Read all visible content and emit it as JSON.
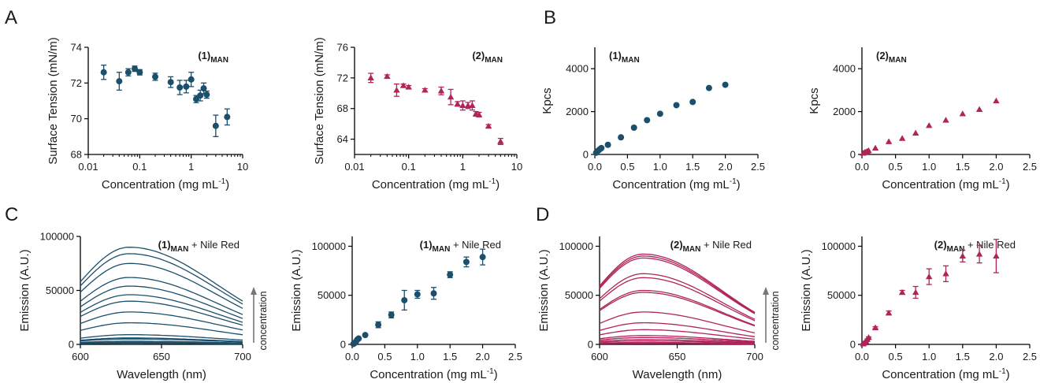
{
  "colors": {
    "blue": "#1b4f6b",
    "red": "#b0245a",
    "axis": "#000000",
    "arrow": "#777777"
  },
  "panel_letters": {
    "a": "A",
    "b": "B",
    "c": "C",
    "d": "D"
  },
  "chart_data": [
    {
      "type": "scatter",
      "panel": "A",
      "annotation": {
        "main": "(1)",
        "sub": "MAN"
      },
      "xscale": "log",
      "xlim": [
        0.01,
        10
      ],
      "ylim": [
        68,
        74
      ],
      "xticks": [
        0.01,
        0.1,
        1,
        10
      ],
      "xtick_labels": [
        "0.01",
        "0.1",
        "1",
        "10"
      ],
      "yticks": [
        68,
        70,
        72,
        74
      ],
      "xlabel": "Concentration (mg mL",
      "xlabel_sup": "-1",
      "xlabel_end": ")",
      "ylabel": "Surface Tension (mN/m)",
      "marker": "circle",
      "color": "#1b4f6b",
      "x": [
        0.02,
        0.04,
        0.06,
        0.08,
        0.1,
        0.2,
        0.4,
        0.6,
        0.8,
        1.0,
        1.25,
        1.5,
        1.75,
        2.0,
        3.0,
        5.0
      ],
      "y": [
        72.6,
        72.1,
        72.6,
        72.8,
        72.6,
        72.35,
        72.05,
        71.75,
        71.8,
        72.2,
        71.1,
        71.3,
        71.7,
        71.35,
        69.6,
        70.1
      ],
      "err": [
        0.4,
        0.5,
        0.2,
        0.15,
        0.15,
        0.2,
        0.3,
        0.4,
        0.35,
        0.4,
        0.2,
        0.3,
        0.3,
        0.2,
        0.6,
        0.45
      ]
    },
    {
      "type": "scatter",
      "panel": "A",
      "annotation": {
        "main": "(2)",
        "sub": "MAN"
      },
      "xscale": "log",
      "xlim": [
        0.01,
        10
      ],
      "ylim": [
        62,
        76
      ],
      "xticks": [
        0.01,
        0.1,
        1,
        10
      ],
      "xtick_labels": [
        "0.01",
        "0.1",
        "1",
        "10"
      ],
      "yticks": [
        64,
        68,
        72,
        76
      ],
      "xlabel": "Concentration (mg mL",
      "xlabel_sup": "-1",
      "xlabel_end": ")",
      "ylabel": "Surface Tension (mN/m)",
      "marker": "triangle",
      "color": "#b0245a",
      "x": [
        0.02,
        0.04,
        0.06,
        0.08,
        0.1,
        0.2,
        0.4,
        0.6,
        0.8,
        1.0,
        1.25,
        1.5,
        1.75,
        2.0,
        3.0,
        5.0
      ],
      "y": [
        72.0,
        72.2,
        70.4,
        71.0,
        70.8,
        70.4,
        70.3,
        69.5,
        68.6,
        68.4,
        68.4,
        68.4,
        67.3,
        67.2,
        65.7,
        63.7
      ],
      "err": [
        0.6,
        0.2,
        0.8,
        0.2,
        0.2,
        0.2,
        0.5,
        1.0,
        0.3,
        0.6,
        0.4,
        0.6,
        0.3,
        0.3,
        0.2,
        0.4
      ]
    },
    {
      "type": "scatter",
      "panel": "B",
      "annotation": {
        "main": "(1)",
        "sub": "MAN"
      },
      "xlim": [
        0,
        2.5
      ],
      "ylim": [
        0,
        5000
      ],
      "xticks": [
        0,
        0.5,
        1,
        1.5,
        2,
        2.5
      ],
      "xtick_labels": [
        "0.0",
        "0.5",
        "1.0",
        "1.5",
        "2.0",
        "2.5"
      ],
      "yticks": [
        0,
        2000,
        4000
      ],
      "xlabel": "Concentration (mg mL",
      "xlabel_sup": "-1",
      "xlabel_end": ")",
      "ylabel": "Kpcs",
      "marker": "circle",
      "color": "#1b4f6b",
      "x": [
        0.02,
        0.04,
        0.06,
        0.08,
        0.1,
        0.2,
        0.4,
        0.6,
        0.8,
        1.0,
        1.25,
        1.5,
        1.75,
        2.0
      ],
      "y": [
        80,
        150,
        200,
        250,
        300,
        450,
        800,
        1250,
        1600,
        1900,
        2300,
        2450,
        3100,
        3250
      ]
    },
    {
      "type": "scatter",
      "panel": "B",
      "annotation": {
        "main": "(2)",
        "sub": "MAN"
      },
      "xlim": [
        0,
        2.5
      ],
      "ylim": [
        0,
        5000
      ],
      "xticks": [
        0,
        0.5,
        1,
        1.5,
        2,
        2.5
      ],
      "xtick_labels": [
        "0.0",
        "0.5",
        "1.0",
        "1.5",
        "2.0",
        "2.5"
      ],
      "yticks": [
        0,
        2000,
        4000
      ],
      "xlabel": "Concentration (mg mL",
      "xlabel_sup": "-1",
      "xlabel_end": ")",
      "ylabel": "Kpcs",
      "marker": "triangle",
      "color": "#b0245a",
      "x": [
        0.02,
        0.04,
        0.06,
        0.08,
        0.1,
        0.2,
        0.4,
        0.6,
        0.8,
        1.0,
        1.25,
        1.5,
        1.75,
        2.0
      ],
      "y": [
        60,
        100,
        120,
        150,
        180,
        300,
        600,
        750,
        1000,
        1350,
        1600,
        1900,
        2100,
        2500
      ]
    },
    {
      "type": "line",
      "panel": "C",
      "annotation": {
        "main": "(1)",
        "sub": "MAN",
        "extra": " + Nile Red"
      },
      "arrow_label": "concentration",
      "xlim": [
        600,
        700
      ],
      "ylim": [
        0,
        100000
      ],
      "xticks": [
        600,
        650,
        700
      ],
      "xtick_labels": [
        "600",
        "650",
        "700"
      ],
      "yticks": [
        0,
        50000,
        100000
      ],
      "xlabel": "Wavelength (nm)",
      "ylabel": "Emission (A.U.)",
      "color": "#1b4f6b",
      "curve": {
        "peak_nm": 630,
        "width_left_nm": 32,
        "width_right_nm": 55
      },
      "peaks": [
        1000,
        2000,
        3000,
        5000,
        6000,
        9000,
        20000,
        30000,
        40000,
        46000,
        54000,
        62000,
        75000,
        84000,
        90000
      ]
    },
    {
      "type": "scatter",
      "panel": "C",
      "annotation": {
        "main": "(1)",
        "sub": "MAN",
        "extra": " + Nile Red"
      },
      "xlim": [
        0,
        2.5
      ],
      "ylim": [
        0,
        110000
      ],
      "xticks": [
        0,
        0.5,
        1,
        1.5,
        2,
        2.5
      ],
      "xtick_labels": [
        "0.0",
        "0.5",
        "1.0",
        "1.5",
        "2.0",
        "2.5"
      ],
      "yticks": [
        0,
        50000,
        100000
      ],
      "xlabel": "Concentration (mg mL",
      "xlabel_sup": "-1",
      "xlabel_end": ")",
      "ylabel": "Emission (A.U.)",
      "marker": "circle",
      "color": "#1b4f6b",
      "x": [
        0.02,
        0.04,
        0.06,
        0.08,
        0.1,
        0.2,
        0.4,
        0.6,
        0.8,
        1.0,
        1.25,
        1.5,
        1.75,
        2.0
      ],
      "y": [
        500,
        1500,
        3000,
        5000,
        6000,
        9500,
        20000,
        30000,
        45000,
        51000,
        52000,
        71000,
        84000,
        89000
      ],
      "err": [
        300,
        400,
        500,
        600,
        700,
        1000,
        3000,
        3000,
        10000,
        4000,
        6000,
        3000,
        5000,
        8000
      ]
    },
    {
      "type": "line",
      "panel": "D",
      "annotation": {
        "main": "(2)",
        "sub": "MAN",
        "extra": " + Nile Red"
      },
      "arrow_label": "concentration",
      "xlim": [
        600,
        700
      ],
      "ylim": [
        0,
        110000
      ],
      "xticks": [
        600,
        650,
        700
      ],
      "xtick_labels": [
        "600",
        "650",
        "700"
      ],
      "yticks": [
        0,
        50000,
        100000
      ],
      "xlabel": "Wavelength (nm)",
      "ylabel": "Emission (A.U.)",
      "color": "#b0245a",
      "curve": {
        "peak_nm": 628,
        "width_left_nm": 30,
        "width_right_nm": 50
      },
      "peaks": [
        1000,
        2000,
        3500,
        5000,
        7000,
        9000,
        15000,
        22000,
        33000,
        53000,
        55000,
        68000,
        72000,
        88000,
        90000,
        92000
      ]
    },
    {
      "type": "scatter",
      "panel": "D",
      "annotation": {
        "main": "(2)",
        "sub": "MAN",
        "extra": " + Nile Red"
      },
      "xlim": [
        0,
        2.5
      ],
      "ylim": [
        0,
        110000
      ],
      "xticks": [
        0,
        0.5,
        1,
        1.5,
        2,
        2.5
      ],
      "xtick_labels": [
        "0.0",
        "0.5",
        "1.0",
        "1.5",
        "2.0",
        "2.5"
      ],
      "yticks": [
        0,
        50000,
        100000
      ],
      "xlabel": "Concentration (mg mL",
      "xlabel_sup": "-1",
      "xlabel_end": ")",
      "ylabel": "Emission (A.U.)",
      "marker": "triangle",
      "color": "#b0245a",
      "x": [
        0.02,
        0.04,
        0.06,
        0.08,
        0.1,
        0.2,
        0.4,
        0.6,
        0.8,
        1.0,
        1.25,
        1.5,
        1.75,
        2.0
      ],
      "y": [
        500,
        1500,
        3000,
        5000,
        7000,
        17000,
        32000,
        53000,
        53000,
        69000,
        72000,
        90000,
        92000,
        90000
      ],
      "err": [
        300,
        400,
        500,
        600,
        700,
        1000,
        2000,
        2000,
        6000,
        8000,
        8000,
        6000,
        9000,
        17000
      ]
    }
  ]
}
